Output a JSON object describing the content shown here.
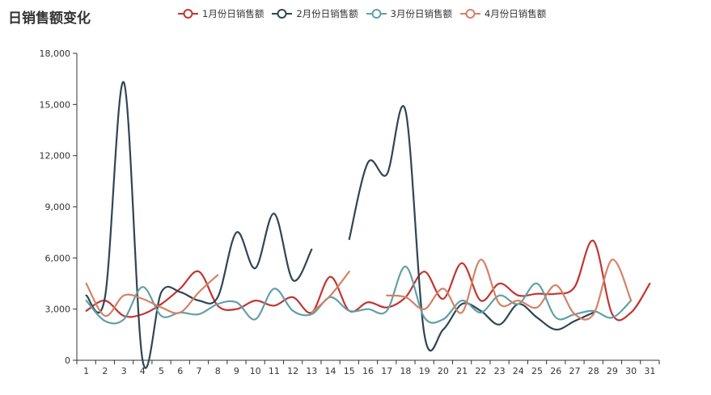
{
  "chart_data": {
    "type": "line",
    "title": "日销售额变化",
    "xlabel": "",
    "ylabel": "",
    "categories": [
      "1",
      "2",
      "3",
      "4",
      "5",
      "6",
      "7",
      "8",
      "9",
      "10",
      "11",
      "12",
      "13",
      "14",
      "15",
      "16",
      "17",
      "18",
      "19",
      "20",
      "21",
      "22",
      "23",
      "24",
      "25",
      "26",
      "27",
      "28",
      "29",
      "30",
      "31"
    ],
    "ylim": [
      0,
      18000
    ],
    "yticks": [
      0,
      3000,
      6000,
      9000,
      12000,
      15000,
      18000
    ],
    "ytick_labels": [
      "0",
      "3,000",
      "6,000",
      "9,000",
      "12,000",
      "15,000",
      "18,000"
    ],
    "grid": false,
    "legend_position": "top",
    "smooth": true,
    "series": [
      {
        "name": "1月份日销售额",
        "color": "#c23531",
        "values": [
          2900,
          3500,
          2600,
          2700,
          3300,
          4200,
          5200,
          3200,
          3000,
          3500,
          3200,
          3700,
          2800,
          4900,
          2900,
          3400,
          3100,
          3700,
          5200,
          3600,
          5700,
          3500,
          4500,
          3800,
          3900,
          3900,
          4300,
          7000,
          2700,
          2800,
          4500
        ]
      },
      {
        "name": "2月份日销售额",
        "color": "#2f4554",
        "values": [
          3800,
          3700,
          16300,
          0,
          4000,
          4000,
          3500,
          3700,
          7500,
          5400,
          8600,
          4700,
          6500,
          null,
          7100,
          11600,
          10900,
          14600,
          1500,
          1800,
          3300,
          2900,
          2100,
          3300,
          2500,
          1800,
          2300,
          2800,
          null,
          null,
          null
        ]
      },
      {
        "name": "3月份日销售额",
        "color": "#61a0a8",
        "values": [
          3500,
          2300,
          2400,
          4300,
          2600,
          2800,
          2700,
          3300,
          3400,
          2400,
          4200,
          2900,
          2700,
          3700,
          2900,
          3000,
          2900,
          5500,
          2500,
          2400,
          3500,
          2800,
          3800,
          3300,
          4500,
          2500,
          2700,
          2900,
          2500,
          3500,
          null
        ]
      },
      {
        "name": "4月份日销售额",
        "color": "#d48265",
        "values": [
          4500,
          2600,
          3800,
          3600,
          3100,
          2800,
          4000,
          5000,
          null,
          null,
          null,
          null,
          2800,
          3800,
          5200,
          null,
          3800,
          3700,
          3000,
          4200,
          2800,
          5900,
          3300,
          3500,
          3100,
          4400,
          2700,
          2700,
          5900,
          3500,
          null
        ]
      }
    ]
  }
}
